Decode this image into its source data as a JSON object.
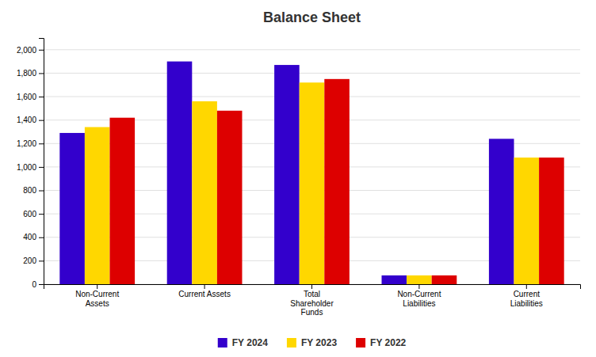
{
  "chart_data": {
    "type": "bar",
    "title": "Balance Sheet",
    "categories": [
      "Non-Current\nAssets",
      "Current Assets",
      "Total\nShareholder\nFunds",
      "Non-Current\nLiabilities",
      "Current\nLiabilities"
    ],
    "series": [
      {
        "name": "FY 2024",
        "color": "#3300CC",
        "values": [
          1290,
          1900,
          1870,
          75,
          1240
        ]
      },
      {
        "name": "FY 2023",
        "color": "#FFD700",
        "values": [
          1340,
          1560,
          1720,
          75,
          1080
        ]
      },
      {
        "name": "FY 2022",
        "color": "#DD0000",
        "values": [
          1420,
          1480,
          1750,
          75,
          1080
        ]
      }
    ],
    "ylim": [
      0,
      2100
    ],
    "yticks": [
      0,
      200,
      400,
      600,
      800,
      {
        "value": 1000,
        "label": "1,000"
      },
      {
        "value": 1200,
        "label": "1,200"
      },
      {
        "value": 1400,
        "label": "1,400"
      },
      {
        "value": 1600,
        "label": "1,600"
      },
      {
        "value": 1800,
        "label": "1,800"
      },
      {
        "value": 2000,
        "label": "2,000"
      }
    ],
    "grid": true,
    "legend": "bottom"
  }
}
